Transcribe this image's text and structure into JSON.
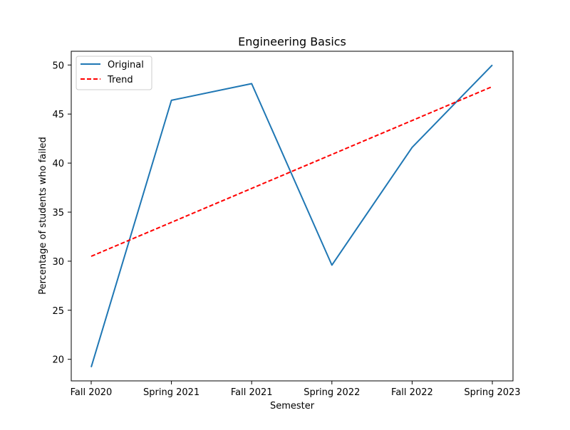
{
  "chart_data": {
    "type": "line",
    "title": "Engineering Basics",
    "xlabel": "Semester",
    "ylabel": "Percentage of students who failed",
    "categories": [
      "Fall 2020",
      "Spring 2021",
      "Fall 2021",
      "Spring 2022",
      "Fall 2022",
      "Spring 2023"
    ],
    "ylim": [
      17.8,
      51.4
    ],
    "yticks": [
      20,
      25,
      30,
      35,
      40,
      45,
      50
    ],
    "grid": false,
    "legend_position": "top-left",
    "series": [
      {
        "name": "Original",
        "style": "solid",
        "color": "#1f77b4",
        "values": [
          19.2,
          46.4,
          48.1,
          29.6,
          41.6,
          50.0
        ]
      },
      {
        "name": "Trend",
        "style": "dashed",
        "color": "#ff0000",
        "values": [
          30.5,
          33.96,
          37.42,
          40.88,
          44.34,
          47.8
        ]
      }
    ]
  }
}
